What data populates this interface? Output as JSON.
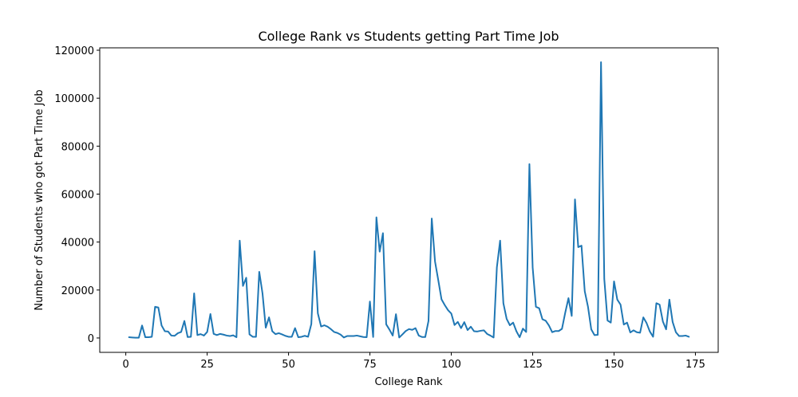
{
  "chart_data": {
    "type": "line",
    "title": "College Rank vs Students getting Part Time Job",
    "xlabel": "College Rank",
    "ylabel": "Number of Students who got Part Time Job",
    "xlim": [
      -8,
      182
    ],
    "ylim": [
      -6000,
      121000
    ],
    "xticks": [
      0,
      25,
      50,
      75,
      100,
      125,
      150,
      175
    ],
    "yticks": [
      0,
      20000,
      40000,
      60000,
      80000,
      100000,
      120000
    ],
    "grid": false,
    "line_color": "#1f77b4",
    "series": [
      {
        "x": [
          1,
          2,
          3,
          4,
          5,
          6,
          7,
          8,
          9,
          10,
          11,
          12,
          13,
          14,
          15,
          16,
          17,
          18,
          19,
          20,
          21,
          22,
          23,
          24,
          25,
          26,
          27,
          28,
          29,
          30,
          31,
          32,
          33,
          34,
          35,
          36,
          37,
          38,
          39,
          40,
          41,
          42,
          43,
          44,
          45,
          46,
          47,
          48,
          49,
          50,
          51,
          52,
          53,
          54,
          55,
          56,
          57,
          58,
          59,
          60,
          61,
          62,
          63,
          64,
          65,
          66,
          67,
          68,
          69,
          70,
          71,
          72,
          73,
          74,
          75,
          76,
          77,
          78,
          79,
          80,
          81,
          82,
          83,
          84,
          85,
          86,
          87,
          88,
          89,
          90,
          91,
          92,
          93,
          94,
          95,
          96,
          97,
          98,
          99,
          100,
          101,
          102,
          103,
          104,
          105,
          106,
          107,
          108,
          109,
          110,
          111,
          112,
          113,
          114,
          115,
          116,
          117,
          118,
          119,
          120,
          121,
          122,
          123,
          124,
          125,
          126,
          127,
          128,
          129,
          130,
          131,
          132,
          133,
          134,
          135,
          136,
          137,
          138,
          139,
          140,
          141,
          142,
          143,
          144,
          145,
          146,
          147,
          148,
          149,
          150,
          151,
          152,
          153,
          154,
          155,
          156,
          157,
          158,
          159,
          160,
          161,
          162,
          163,
          164,
          165,
          166,
          167,
          168,
          169,
          170,
          171,
          172,
          173
        ],
        "values": [
          300,
          200,
          100,
          100,
          5200,
          300,
          300,
          500,
          13000,
          12700,
          5200,
          2800,
          2700,
          1000,
          900,
          2000,
          2500,
          7100,
          400,
          500,
          18600,
          1200,
          1600,
          1000,
          2500,
          10000,
          1700,
          1200,
          1700,
          1400,
          1000,
          800,
          1100,
          300,
          40600,
          21700,
          25100,
          1500,
          500,
          500,
          27600,
          18600,
          4300,
          8600,
          2800,
          1600,
          2000,
          1500,
          900,
          500,
          500,
          4100,
          300,
          500,
          900,
          500,
          5800,
          36200,
          10300,
          4800,
          5300,
          4700,
          3700,
          2500,
          2100,
          1400,
          200,
          800,
          800,
          800,
          1000,
          700,
          400,
          300,
          15200,
          400,
          50300,
          36000,
          43700,
          5700,
          3500,
          1000,
          9900,
          200,
          1500,
          2900,
          3700,
          3400,
          4100,
          1000,
          400,
          400,
          7100,
          49800,
          31900,
          24100,
          16100,
          13700,
          11600,
          10200,
          5400,
          6700,
          4100,
          6600,
          3300,
          4700,
          2800,
          2700,
          3000,
          3200,
          1700,
          1000,
          200,
          29400,
          40600,
          14500,
          8000,
          5300,
          6400,
          2800,
          300,
          3900,
          2500,
          72500,
          29400,
          13000,
          12400,
          7800,
          7200,
          5200,
          2400,
          2900,
          2900,
          3800,
          10500,
          16600,
          9200,
          57800,
          37900,
          38500,
          19500,
          13000,
          3600,
          1200,
          1300,
          115000,
          24600,
          7300,
          6400,
          23600,
          16000,
          13900,
          5600,
          6400,
          2300,
          3200,
          2400,
          2200,
          8600,
          6200,
          2700,
          500,
          14500,
          13900,
          6900,
          3600,
          16000,
          6700,
          2400,
          800,
          800,
          1000,
          500
        ]
      }
    ]
  }
}
